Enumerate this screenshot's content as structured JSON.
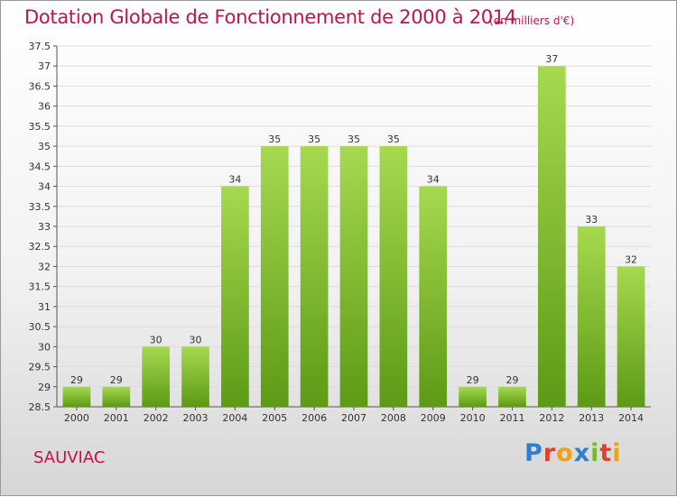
{
  "header": {
    "title": "Dotation Globale de Fonctionnement de 2000 à 2014",
    "unit": "(en milliers d'€)"
  },
  "footer": {
    "town": "SAUVIAC",
    "brand": [
      "P",
      "r",
      "o",
      "x",
      "i",
      "t",
      "i"
    ],
    "brand_colors": [
      "#2e7fd0",
      "#e2402f",
      "#f1a01b",
      "#2e7fd0",
      "#7ab82b",
      "#e2402f",
      "#f1a01b"
    ]
  },
  "colors": {
    "bar_light": "#a6d94f",
    "bar_dark": "#5d9a15",
    "title": "#c0134e"
  },
  "chart_data": {
    "type": "bar",
    "categories": [
      "2000",
      "2001",
      "2002",
      "2003",
      "2004",
      "2005",
      "2006",
      "2007",
      "2008",
      "2009",
      "2010",
      "2011",
      "2012",
      "2013",
      "2014"
    ],
    "values": [
      29,
      29,
      30,
      30,
      34,
      35,
      35,
      35,
      35,
      34,
      29,
      29,
      37,
      33,
      32
    ],
    "title": "Dotation Globale de Fonctionnement de 2000 à 2014",
    "subtitle": "(en milliers d'€)",
    "xlabel": "",
    "ylabel": "",
    "ylim": [
      28.5,
      37.5
    ],
    "yticks": [
      "28.5",
      "29",
      "29.5",
      "30",
      "30.5",
      "31",
      "31.5",
      "32",
      "32.5",
      "33",
      "33.5",
      "34",
      "34.5",
      "35",
      "35.5",
      "36",
      "36.5",
      "37",
      "37.5"
    ],
    "grid": true,
    "legend": "none"
  }
}
